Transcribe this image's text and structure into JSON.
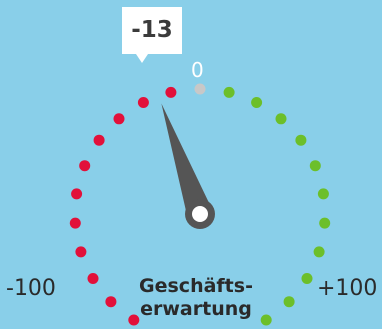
{
  "gauge": {
    "value": -13,
    "value_label": "-13",
    "min_label": "-100",
    "max_label": "+100",
    "zero_label": "0",
    "caption_line1": "Geschäfts-",
    "caption_line2": "erwartung",
    "min": -100,
    "max": 100,
    "negative_dots": 11,
    "positive_dots": 11,
    "colors": {
      "negative": "#e2103a",
      "neutral": "#c8c8c8",
      "positive": "#6cbf2a",
      "needle": "#555555",
      "background": "#89cfe9"
    }
  }
}
